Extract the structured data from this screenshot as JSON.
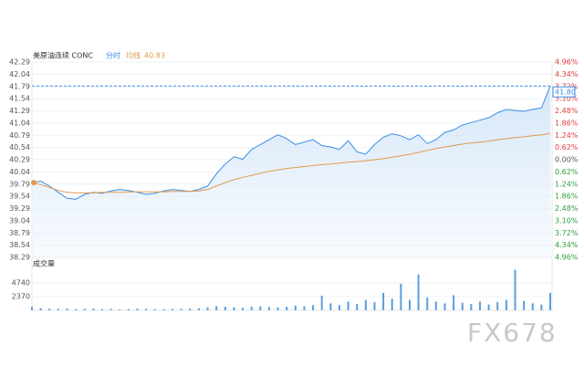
{
  "chart_data": {
    "type": "intraday",
    "title": "美原油连续 CONC",
    "average_last": 40.83,
    "last_price": {
      "value": 41.8,
      "label": "41.80"
    },
    "ylim": [
      38.29,
      42.29
    ],
    "yticks": [
      42.29,
      42.04,
      41.79,
      41.54,
      41.29,
      41.04,
      40.79,
      40.54,
      40.29,
      40.04,
      39.79,
      39.54,
      39.29,
      39.04,
      38.79,
      38.54,
      38.29
    ],
    "y2lim": [
      -4.96,
      4.96
    ],
    "y2ticks": [
      {
        "value": 4.96,
        "label": "4.96%"
      },
      {
        "value": 4.34,
        "label": "4.34%"
      },
      {
        "value": 3.72,
        "label": "3.72%"
      },
      {
        "value": 3.1,
        "label": "3.10%"
      },
      {
        "value": 2.48,
        "label": "2.48%"
      },
      {
        "value": 1.86,
        "label": "1.86%"
      },
      {
        "value": 1.24,
        "label": "1.24%"
      },
      {
        "value": 0.62,
        "label": "0.62%"
      },
      {
        "value": 0,
        "label": "0.00%"
      },
      {
        "value": -0.62,
        "label": "0.62%"
      },
      {
        "value": -1.24,
        "label": "1.24%"
      },
      {
        "value": -1.86,
        "label": "1.86%"
      },
      {
        "value": -2.48,
        "label": "2.48%"
      },
      {
        "value": -3.1,
        "label": "3.10%"
      },
      {
        "value": -3.72,
        "label": "3.72%"
      },
      {
        "value": -4.34,
        "label": "4.34%"
      },
      {
        "value": -4.96,
        "label": "4.96%"
      }
    ],
    "series": [
      {
        "name": "分时",
        "color": "#3a8ee6",
        "values": [
          39.82,
          39.85,
          39.75,
          39.62,
          39.5,
          39.48,
          39.58,
          39.62,
          39.6,
          39.65,
          39.68,
          39.66,
          39.62,
          39.58,
          39.6,
          39.65,
          39.68,
          39.66,
          39.64,
          39.68,
          39.75,
          40.0,
          40.2,
          40.35,
          40.3,
          40.5,
          40.6,
          40.7,
          40.8,
          40.72,
          40.6,
          40.65,
          40.7,
          40.58,
          40.55,
          40.5,
          40.68,
          40.45,
          40.4,
          40.6,
          40.75,
          40.82,
          40.78,
          40.7,
          40.8,
          40.62,
          40.7,
          40.85,
          40.9,
          41.0,
          41.05,
          41.1,
          41.15,
          41.25,
          41.32,
          41.3,
          41.28,
          41.32,
          41.35,
          41.8
        ]
      },
      {
        "name": "均线",
        "color": "#e09a4e",
        "values": [
          39.82,
          39.78,
          39.72,
          39.66,
          39.62,
          39.61,
          39.61,
          39.61,
          39.62,
          39.62,
          39.62,
          39.63,
          39.63,
          39.63,
          39.63,
          39.63,
          39.64,
          39.64,
          39.64,
          39.65,
          39.68,
          39.75,
          39.82,
          39.88,
          39.93,
          39.97,
          40.01,
          40.05,
          40.08,
          40.11,
          40.13,
          40.15,
          40.17,
          40.19,
          40.2,
          40.22,
          40.24,
          40.25,
          40.27,
          40.29,
          40.31,
          40.34,
          40.37,
          40.4,
          40.44,
          40.48,
          40.52,
          40.55,
          40.58,
          40.61,
          40.63,
          40.65,
          40.67,
          40.7,
          40.72,
          40.74,
          40.76,
          40.78,
          40.8,
          40.83
        ]
      }
    ],
    "volume": {
      "label": "成交量",
      "color": "#5a9ee0",
      "ylim": [
        0,
        7900
      ],
      "yticks": [
        4740,
        2370
      ],
      "values": [
        600,
        350,
        300,
        250,
        300,
        200,
        250,
        300,
        200,
        250,
        150,
        200,
        300,
        250,
        200,
        180,
        220,
        260,
        300,
        350,
        500,
        700,
        600,
        500,
        450,
        600,
        700,
        550,
        500,
        600,
        800,
        700,
        900,
        2500,
        1200,
        900,
        1500,
        1100,
        1800,
        1400,
        3000,
        2000,
        4600,
        1800,
        6200,
        2200,
        1500,
        1200,
        2600,
        1300,
        1100,
        1500,
        1000,
        1400,
        1800,
        7000,
        1600,
        1200,
        1000,
        3000
      ]
    },
    "watermark": "FX678"
  }
}
